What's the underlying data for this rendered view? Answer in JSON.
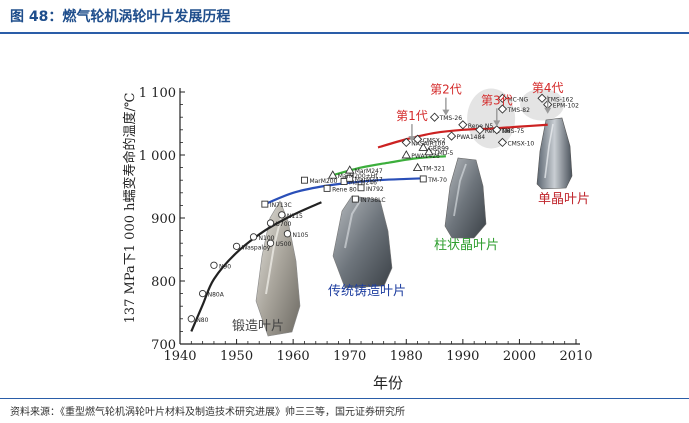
{
  "figure": {
    "title": "图 48：燃气轮机涡轮叶片发展历程",
    "source": "资料来源：《重型燃气轮机涡轮叶片材料及制造技术研究进展》帅三三等，国元证券研究所"
  },
  "colors": {
    "title_blue": "#1f4e8c",
    "curve_black": "#222222",
    "curve_blue": "#2a4fb8",
    "curve_green": "#3cae3c",
    "curve_red": "#cc2222",
    "gen_red": "#d42a2a",
    "green_label": "#2e9e2e",
    "blue_label": "#1f3fa0",
    "red_label": "#c0262d",
    "gray_label": "#444444"
  },
  "chart_data": {
    "type": "scatter",
    "xlabel": "年份",
    "ylabel": "137 MPa下1 000 h蠕变寿命的温度/℃",
    "xlim": [
      1940,
      2010
    ],
    "ylim": [
      700,
      1100
    ],
    "xticks": [
      "1940",
      "1950",
      "1960",
      "1970",
      "1980",
      "1990",
      "2000",
      "2010"
    ],
    "yticks": [
      "700",
      "800",
      "900",
      "1 000",
      "1 100"
    ],
    "categories_labels": {
      "forged": "锻造叶片",
      "cast": "传统铸造叶片",
      "columnar": "柱状晶叶片",
      "single": "单晶叶片"
    },
    "generations": [
      {
        "label": "第1代",
        "x": 1981,
        "y": 1030
      },
      {
        "label": "第2代",
        "x": 1987,
        "y": 1072
      },
      {
        "label": "第3代",
        "x": 1996,
        "y": 1055
      },
      {
        "label": "第4代",
        "x": 2005,
        "y": 1075
      }
    ],
    "series": [
      {
        "key": "forged",
        "marker": "circle",
        "curve": [
          [
            1942,
            720
          ],
          [
            1944,
            762
          ],
          [
            1946,
            803
          ],
          [
            1950,
            845
          ],
          [
            1955,
            880
          ],
          [
            1960,
            905
          ],
          [
            1965,
            925
          ]
        ],
        "points": [
          {
            "label": "N80",
            "x": 1942,
            "y": 740
          },
          {
            "label": "N80A",
            "x": 1944,
            "y": 780
          },
          {
            "label": "N90",
            "x": 1946,
            "y": 825
          },
          {
            "label": "Waspaloy",
            "x": 1950,
            "y": 855
          },
          {
            "label": "N100",
            "x": 1953,
            "y": 870
          },
          {
            "label": "U500",
            "x": 1956,
            "y": 860
          },
          {
            "label": "N105",
            "x": 1959,
            "y": 875
          },
          {
            "label": "U700",
            "x": 1956,
            "y": 892
          },
          {
            "label": "N115",
            "x": 1958,
            "y": 905
          }
        ]
      },
      {
        "key": "cast",
        "marker": "square",
        "curve": [
          [
            1955,
            922
          ],
          [
            1960,
            940
          ],
          [
            1965,
            950
          ],
          [
            1970,
            956
          ],
          [
            1975,
            960
          ],
          [
            1980,
            962
          ],
          [
            1983,
            963
          ]
        ],
        "points": [
          {
            "label": "IN713C",
            "x": 1955,
            "y": 922
          },
          {
            "label": "MarM200",
            "x": 1962,
            "y": 960
          },
          {
            "label": "MarM246",
            "x": 1969,
            "y": 958
          },
          {
            "label": "Rene 80",
            "x": 1966,
            "y": 947
          },
          {
            "label": "IN738LC",
            "x": 1971,
            "y": 930
          },
          {
            "label": "IN792",
            "x": 1972,
            "y": 948
          },
          {
            "label": "MarM247",
            "x": 1970,
            "y": 963
          },
          {
            "label": "TM-70",
            "x": 1983,
            "y": 962
          }
        ]
      },
      {
        "key": "columnar",
        "marker": "triangle",
        "curve": [
          [
            1967,
            968
          ],
          [
            1972,
            980
          ],
          [
            1977,
            988
          ],
          [
            1982,
            995
          ],
          [
            1987,
            998
          ]
        ],
        "points": [
          {
            "label": "MarM200+Hf",
            "x": 1967,
            "y": 968
          },
          {
            "label": "MarM247",
            "x": 1970,
            "y": 976
          },
          {
            "label": "TM-321",
            "x": 1982,
            "y": 980
          },
          {
            "label": "PWA1426",
            "x": 1980,
            "y": 1000
          },
          {
            "label": "TMD-5",
            "x": 1984,
            "y": 1005
          },
          {
            "label": "GRR99",
            "x": 1983,
            "y": 1012
          }
        ]
      },
      {
        "key": "single",
        "marker": "diamond",
        "curve": [
          [
            1975,
            1012
          ],
          [
            1980,
            1025
          ],
          [
            1985,
            1035
          ],
          [
            1990,
            1040
          ],
          [
            1995,
            1042
          ],
          [
            2000,
            1045
          ],
          [
            2005,
            1048
          ]
        ],
        "points": [
          {
            "label": "NASAIR100",
            "x": 1980,
            "y": 1020
          },
          {
            "label": "CMSX-2",
            "x": 1982,
            "y": 1025
          },
          {
            "label": "TMS-26",
            "x": 1985,
            "y": 1060
          },
          {
            "label": "Rene N5",
            "x": 1990,
            "y": 1048
          },
          {
            "label": "PWA1484",
            "x": 1988,
            "y": 1030
          },
          {
            "label": "Rene N6",
            "x": 1993,
            "y": 1040
          },
          {
            "label": "MC-NG",
            "x": 1997,
            "y": 1090
          },
          {
            "label": "TMS-82",
            "x": 1997,
            "y": 1073
          },
          {
            "label": "TMS-75",
            "x": 1996,
            "y": 1040
          },
          {
            "label": "CMSX-10",
            "x": 1997,
            "y": 1020
          },
          {
            "label": "TMS-162",
            "x": 2004,
            "y": 1090
          },
          {
            "label": "EPM-102",
            "x": 2005,
            "y": 1080
          }
        ]
      }
    ]
  }
}
